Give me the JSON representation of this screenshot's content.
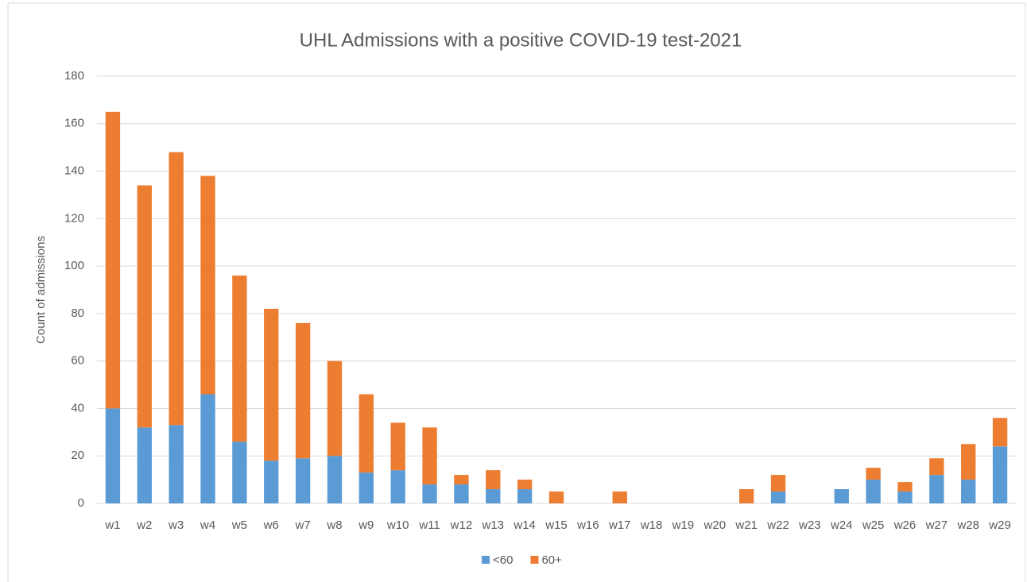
{
  "chart_data": {
    "type": "stacked_bar",
    "title": "UHL Admissions with a positive COVID-19 test-2021",
    "y_label": "Count of admissions",
    "categories": [
      "w1",
      "w2",
      "w3",
      "w4",
      "w5",
      "w6",
      "w7",
      "w8",
      "w9",
      "w10",
      "w11",
      "w12",
      "w13",
      "w14",
      "w15",
      "w16",
      "w17",
      "w18",
      "w19",
      "w20",
      "w21",
      "w22",
      "w23",
      "w24",
      "w25",
      "w26",
      "w27",
      "w28",
      "w29"
    ],
    "series": [
      {
        "name": "<60",
        "color": "#5b9bd5",
        "values": [
          40,
          32,
          33,
          46,
          26,
          18,
          19,
          20,
          13,
          14,
          8,
          8,
          6,
          6,
          0,
          0,
          0,
          0,
          0,
          0,
          0,
          5,
          0,
          6,
          10,
          5,
          12,
          10,
          24
        ]
      },
      {
        "name": "60+",
        "color": "#ed7d31",
        "values": [
          125,
          102,
          115,
          92,
          70,
          64,
          57,
          40,
          33,
          20,
          24,
          4,
          8,
          4,
          5,
          0,
          5,
          0,
          0,
          0,
          6,
          7,
          0,
          0,
          5,
          4,
          7,
          15,
          12
        ]
      }
    ],
    "ylim": [
      0,
      180
    ],
    "yticks": [
      0,
      20,
      40,
      60,
      80,
      100,
      120,
      140,
      160,
      180
    ],
    "grid": true,
    "legend": "bottom"
  }
}
